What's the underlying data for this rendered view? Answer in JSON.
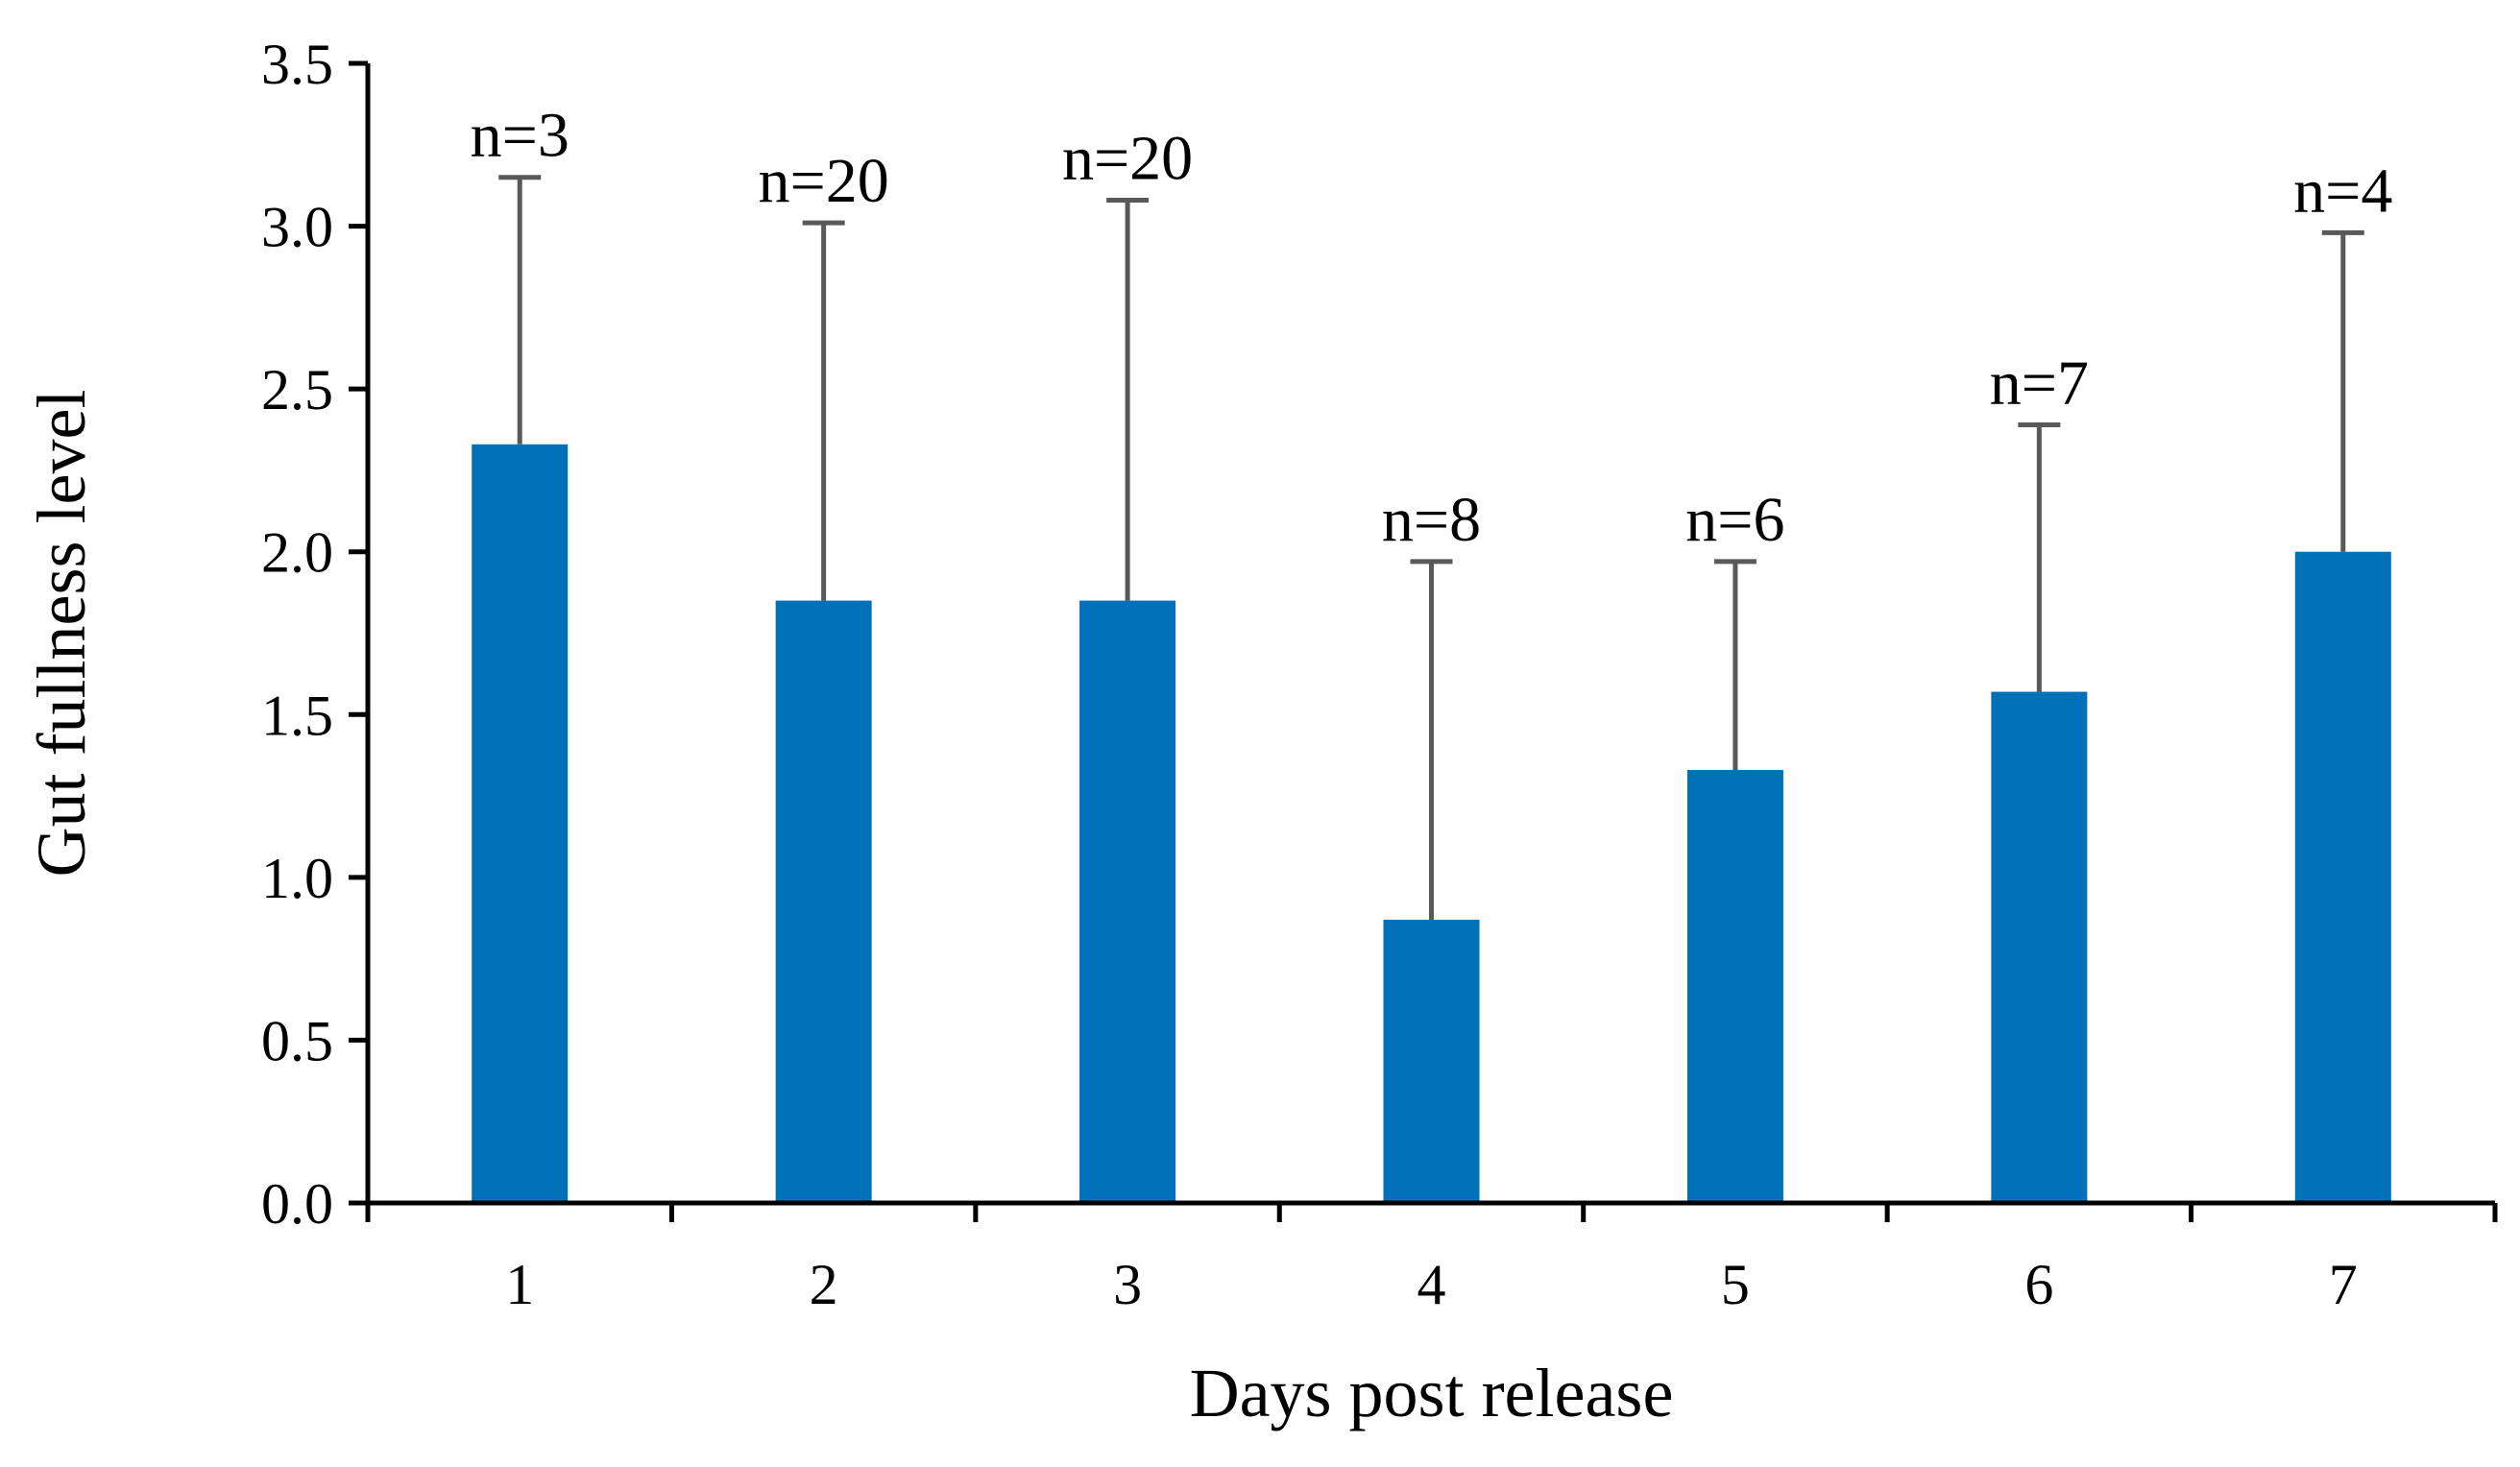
{
  "chart_data": {
    "type": "bar",
    "xlabel": "Days post release",
    "ylabel": "Gut fullness level",
    "ylim": [
      0,
      3.5
    ],
    "yticks": [
      "0.0",
      "0.5",
      "1.0",
      "1.5",
      "2.0",
      "2.5",
      "3.0",
      "3.5"
    ],
    "categories": [
      "1",
      "2",
      "3",
      "4",
      "5",
      "6",
      "7"
    ],
    "values": [
      2.33,
      1.85,
      1.85,
      0.87,
      1.33,
      1.57,
      2.0
    ],
    "error_upper": [
      3.15,
      3.01,
      3.08,
      1.97,
      1.97,
      2.39,
      2.98
    ],
    "sample_sizes": [
      "n=3",
      "n=20",
      "n=20",
      "n=8",
      "n=6",
      "n=7",
      "n=4"
    ],
    "bar_color": "#0070b8",
    "error_bar_color": "#595959",
    "axis_color": "#000000",
    "grid": false,
    "legend": "none"
  }
}
